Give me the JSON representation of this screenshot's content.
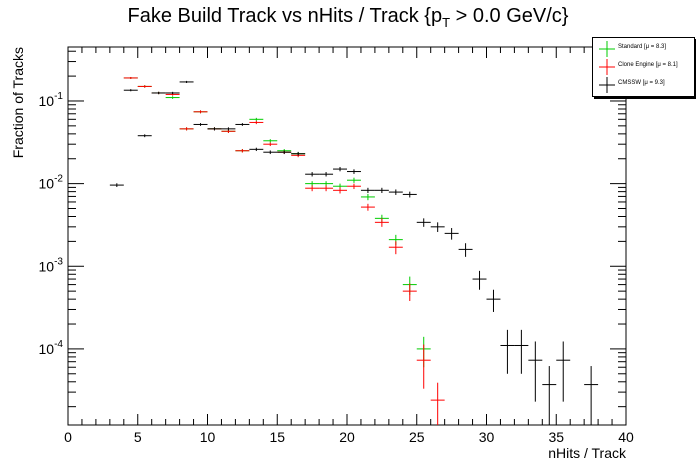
{
  "title": {
    "main": "Fake Build Track vs nHits / Track {p",
    "sub": "T",
    "tail": " > 0.0 GeV/c}"
  },
  "chart_data": {
    "type": "scatter",
    "xlabel": "nHits / Track",
    "ylabel": "Fraction of Tracks",
    "xlim": [
      0,
      40
    ],
    "ylim": [
      1.2e-05,
      0.45
    ],
    "yscale": "log",
    "x_ticks": [
      0,
      5,
      10,
      15,
      20,
      25,
      30,
      35,
      40
    ],
    "y_ticks": [
      {
        "value": 0.1,
        "base": "10",
        "exp": "-1"
      },
      {
        "value": 0.01,
        "base": "10",
        "exp": "-2"
      },
      {
        "value": 0.001,
        "base": "10",
        "exp": "-3"
      },
      {
        "value": 0.0001,
        "base": "10",
        "exp": "-4"
      }
    ],
    "legend_position": "top-right",
    "series": [
      {
        "name": "Standard",
        "legend": "Standard  [μ = 8.3]",
        "color": "#00cc00",
        "x": [
          4.5,
          5.5,
          6.5,
          7.5,
          8.5,
          9.5,
          10.5,
          11.5,
          12.5,
          13.5,
          14.5,
          15.5,
          16.5,
          17.5,
          18.5,
          19.5,
          20.5,
          21.5,
          22.5,
          23.5,
          24.5,
          25.5
        ],
        "y": [
          0.19,
          0.15,
          0.125,
          0.11,
          0.046,
          0.074,
          0.046,
          0.043,
          0.025,
          0.06,
          0.033,
          0.025,
          0.023,
          0.01,
          0.01,
          0.0093,
          0.011,
          0.0069,
          0.0038,
          0.0021,
          0.0006,
          0.0001
        ],
        "yerr": [
          0.005,
          0.005,
          0.004,
          0.004,
          0.002,
          0.003,
          0.002,
          0.002,
          0.0012,
          0.0025,
          0.0015,
          0.0012,
          0.0011,
          0.0007,
          0.0007,
          0.0007,
          0.0008,
          0.0006,
          0.0004,
          0.0003,
          0.00015,
          4e-05
        ]
      },
      {
        "name": "Clone Engine",
        "legend": "Clone Engine  [μ = 8.1]",
        "color": "#ff0000",
        "x": [
          4.5,
          5.5,
          6.5,
          7.5,
          8.5,
          9.5,
          10.5,
          11.5,
          12.5,
          13.5,
          14.5,
          15.5,
          16.5,
          17.5,
          18.5,
          19.5,
          20.5,
          21.5,
          22.5,
          23.5,
          24.5,
          25.5,
          26.5
        ],
        "y": [
          0.19,
          0.15,
          0.125,
          0.12,
          0.046,
          0.074,
          0.046,
          0.043,
          0.025,
          0.055,
          0.03,
          0.024,
          0.022,
          0.0088,
          0.0088,
          0.0083,
          0.0093,
          0.0052,
          0.0034,
          0.0017,
          0.0005,
          7.3e-05,
          2.4e-05
        ],
        "yerr": [
          0.005,
          0.005,
          0.004,
          0.004,
          0.002,
          0.003,
          0.002,
          0.002,
          0.0012,
          0.0025,
          0.0015,
          0.0012,
          0.0011,
          0.0007,
          0.0007,
          0.0007,
          0.0007,
          0.0005,
          0.0004,
          0.0003,
          0.00012,
          4e-05,
          1.5e-05
        ]
      },
      {
        "name": "CMSSW",
        "legend": "CMSSW  [μ = 9.3]",
        "color": "#000000",
        "x": [
          3.5,
          4.5,
          5.5,
          6.5,
          7.5,
          8.5,
          9.5,
          10.5,
          11.5,
          12.5,
          13.5,
          14.5,
          15.5,
          16.5,
          17.5,
          18.5,
          19.5,
          20.5,
          21.5,
          22.5,
          23.5,
          24.5,
          25.5,
          26.5,
          27.5,
          28.5,
          29.5,
          30.5,
          31.5,
          32.5,
          33.5,
          34.5,
          35.5,
          37.5
        ],
        "y": [
          0.0096,
          0.135,
          0.038,
          0.125,
          0.125,
          0.17,
          0.052,
          0.046,
          0.046,
          0.052,
          0.026,
          0.024,
          0.024,
          0.023,
          0.013,
          0.013,
          0.015,
          0.014,
          0.0083,
          0.0083,
          0.0079,
          0.0074,
          0.0034,
          0.003,
          0.0025,
          0.0016,
          0.0007,
          0.0004,
          0.00011,
          0.00011,
          7.3e-05,
          3.7e-05,
          7.3e-05,
          3.7e-05
        ],
        "yerr": [
          0.0005,
          0.004,
          0.0015,
          0.004,
          0.004,
          0.005,
          0.002,
          0.002,
          0.002,
          0.002,
          0.0012,
          0.0012,
          0.0012,
          0.0012,
          0.0008,
          0.0008,
          0.0009,
          0.0009,
          0.0006,
          0.0006,
          0.0006,
          0.0006,
          0.0004,
          0.0004,
          0.0004,
          0.0003,
          0.00018,
          0.00012,
          6e-05,
          6e-05,
          5e-05,
          2.5e-05,
          5e-05,
          2.5e-05
        ]
      }
    ]
  }
}
